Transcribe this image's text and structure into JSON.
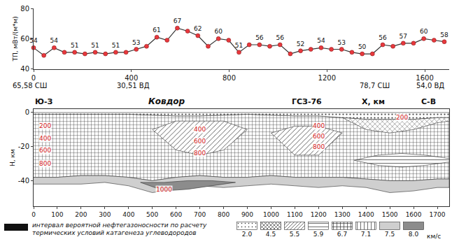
{
  "chart_data": [
    {
      "type": "line",
      "y_label": "ТП, мВт/(м*м)",
      "x": [
        0,
        42,
        84,
        126,
        168,
        210,
        252,
        294,
        336,
        378,
        420,
        462,
        504,
        546,
        588,
        630,
        672,
        714,
        756,
        798,
        840,
        882,
        924,
        966,
        1008,
        1050,
        1092,
        1134,
        1176,
        1218,
        1260,
        1302,
        1344,
        1386,
        1428,
        1470,
        1512,
        1554,
        1596,
        1638,
        1680
      ],
      "values": [
        54,
        49,
        54,
        51,
        51,
        50,
        51,
        50,
        51,
        51,
        53,
        55,
        61,
        59,
        67,
        65,
        62,
        55,
        60,
        59,
        51,
        56,
        56,
        55,
        56,
        50,
        52,
        53,
        54,
        53,
        53,
        51,
        50,
        50,
        56,
        55,
        57,
        57,
        60,
        59,
        58
      ],
      "value_labels": [
        "54",
        null,
        "54",
        null,
        "51",
        null,
        "51",
        null,
        "51",
        null,
        "53",
        null,
        "61",
        null,
        "67",
        null,
        "62",
        null,
        "60",
        null,
        "51",
        null,
        "56",
        null,
        "56",
        null,
        "52",
        null,
        "54",
        null,
        "53",
        null,
        "50",
        null,
        "56",
        null,
        "57",
        null,
        "60",
        null,
        "58"
      ],
      "data_labels": true,
      "color": "#e8383d",
      "marker": "circle",
      "xlim": [
        0,
        1700
      ],
      "xticks": [
        0,
        400,
        800,
        1200,
        1600
      ],
      "ylim": [
        40,
        80
      ],
      "yticks": [
        40,
        60,
        80
      ],
      "grid": false,
      "annotations": [
        "65,58 СШ",
        "30,51 ВД",
        "78,7 СШ",
        "54,0 ВД"
      ]
    },
    {
      "type": "section",
      "y_label": "H, км",
      "xlim": [
        0,
        1750
      ],
      "xticks": [
        0,
        100,
        200,
        300,
        400,
        500,
        600,
        700,
        800,
        900,
        1000,
        1100,
        1200,
        1300,
        1400,
        1500,
        1600,
        1700
      ],
      "ylim": [
        -55,
        2
      ],
      "yticks": [
        0,
        -20,
        -40
      ],
      "header": [
        {
          "text": "Ю-З",
          "x": 0
        },
        {
          "text": "Ковдор",
          "x": 560
        },
        {
          "text": "ГСЗ-76",
          "x": 1150
        },
        {
          "text": "Х, км",
          "x": 1430
        },
        {
          "text": "С-В",
          "x": 1700
        }
      ],
      "layers": [
        {
          "velocity": 6.7,
          "x": [
            0,
            100,
            200,
            300,
            400,
            500,
            600,
            700,
            800,
            900,
            1000,
            1100,
            1200,
            1300,
            1400,
            1500,
            1600,
            1700,
            1750
          ],
          "top": [
            -1,
            -1,
            -1,
            -1,
            -1,
            -1.5,
            -2,
            -2,
            -1.5,
            -1,
            -1.5,
            -2,
            -2,
            -3,
            -4,
            -4,
            -4,
            -3,
            -3
          ],
          "bottom": [
            -38,
            -38,
            -37,
            -37,
            -38,
            -40,
            -38,
            -37,
            -38,
            -38,
            -37,
            -38,
            -38,
            -38,
            -39,
            -40,
            -40,
            -39,
            -39
          ]
        },
        {
          "velocity": 2,
          "x": [
            0,
            100,
            200,
            300,
            400,
            500,
            600,
            700,
            800,
            900,
            1000,
            1100,
            1200,
            1300,
            1400,
            1500,
            1600,
            1700,
            1750
          ],
          "top": [
            0,
            0,
            0,
            0,
            0,
            0,
            0,
            0,
            0,
            0,
            0,
            0,
            0,
            0,
            0,
            0,
            0,
            0,
            0
          ],
          "bottom": [
            -1,
            -1,
            -1,
            -1,
            -1,
            -1.5,
            -2,
            -2,
            -1.5,
            -1,
            -1.5,
            -2,
            -2,
            -3,
            -4,
            -4,
            -4,
            -3,
            -3
          ]
        },
        {
          "velocity": 5.5,
          "x": [
            500,
            600,
            700,
            800,
            900
          ],
          "top": [
            -10,
            -5,
            -5,
            -5,
            -10
          ],
          "bottom": [
            -10,
            -22,
            -25,
            -22,
            -10
          ]
        },
        {
          "velocity": 5.5,
          "x": [
            1000,
            1100,
            1200,
            1300
          ],
          "top": [
            -12,
            -8,
            -8,
            -12
          ],
          "bottom": [
            -12,
            -25,
            -25,
            -12
          ]
        },
        {
          "velocity": 4.5,
          "x": [
            1300,
            1400,
            1500,
            1600,
            1700,
            1750
          ],
          "top": [
            -3,
            -4,
            -4,
            -4,
            -3,
            -3
          ],
          "bottom": [
            -3,
            -10,
            -12,
            -10,
            -6,
            -5
          ]
        },
        {
          "velocity": 5.9,
          "x": [
            1350,
            1450,
            1550,
            1650,
            1750
          ],
          "top": [
            -28,
            -25,
            -24,
            -25,
            -27
          ],
          "bottom": [
            -28,
            -31,
            -32,
            -31,
            -29
          ]
        },
        {
          "velocity": 7.5,
          "x": [
            0,
            100,
            200,
            300,
            400,
            500,
            600,
            700,
            800,
            900,
            1000,
            1100,
            1200,
            1300,
            1400,
            1500,
            1600,
            1700,
            1750
          ],
          "top": [
            -38,
            -38,
            -37,
            -37,
            -38,
            -40,
            -38,
            -37,
            -38,
            -38,
            -37,
            -38,
            -38,
            -38,
            -39,
            -40,
            -40,
            -39,
            -39
          ],
          "bottom": [
            -42,
            -42,
            -42,
            -41,
            -43,
            -47,
            -45,
            -43,
            -44,
            -43,
            -42,
            -43,
            -44,
            -43,
            -44,
            -47,
            -46,
            -44,
            -44
          ]
        },
        {
          "velocity": 8,
          "x": [
            450,
            550,
            650,
            750,
            850
          ],
          "top": [
            -41,
            -41,
            -40,
            -40,
            -41
          ],
          "bottom": [
            -41,
            -46,
            -45,
            -43,
            -41
          ]
        }
      ],
      "isotherm_labels": [
        {
          "value": 200,
          "x": 50,
          "y": -8
        },
        {
          "value": 400,
          "x": 50,
          "y": -15
        },
        {
          "value": 600,
          "x": 50,
          "y": -22
        },
        {
          "value": 800,
          "x": 50,
          "y": -30
        },
        {
          "value": 400,
          "x": 700,
          "y": -10
        },
        {
          "value": 600,
          "x": 700,
          "y": -17
        },
        {
          "value": 800,
          "x": 700,
          "y": -24
        },
        {
          "value": 400,
          "x": 1200,
          "y": -8
        },
        {
          "value": 600,
          "x": 1200,
          "y": -14
        },
        {
          "value": 800,
          "x": 1200,
          "y": -20
        },
        {
          "value": 200,
          "x": 1550,
          "y": -3
        },
        {
          "value": 1000,
          "x": 550,
          "y": -45
        }
      ],
      "velocity_legend": {
        "interval_text": "интервал вероятной нефтегазоносности  по расчету термических условий катагенеза углеводородов",
        "items": [
          {
            "value": 2,
            "label": "2.0"
          },
          4.5,
          5.5,
          5.9,
          6.7,
          7.1,
          7.5,
          {
            "value": 8,
            "label": "8.0"
          }
        ],
        "unit": "км/с"
      }
    }
  ]
}
